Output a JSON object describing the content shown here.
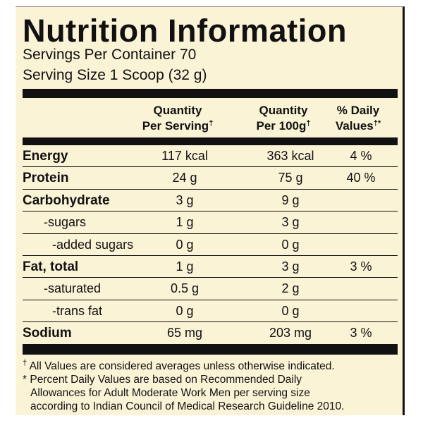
{
  "title": "Nutrition Information",
  "servings_per_container": "Servings Per Container 70",
  "serving_size": "Serving Size 1 Scoop (32 g)",
  "headers": [
    {
      "line1": "Quantity",
      "line2": "Per Serving",
      "mark": "†"
    },
    {
      "line1": "Quantity",
      "line2": "Per 100g",
      "mark": "†"
    },
    {
      "line1": "% Daily",
      "line2": "Values",
      "mark": "†*"
    }
  ],
  "rows": [
    {
      "label": "Energy",
      "per_serving": "117 kcal",
      "per_100g": "363 kcal",
      "daily_value": "4 %"
    },
    {
      "label": "Protein",
      "per_serving": "24 g",
      "per_100g": "75 g",
      "daily_value": "40 %"
    },
    {
      "label": "Carbohydrate",
      "per_serving": "3 g",
      "per_100g": "9 g"
    },
    {
      "label": "-sugars",
      "per_serving": "1 g",
      "per_100g": "3 g"
    },
    {
      "label": "-added sugars",
      "per_serving": "0 g",
      "per_100g": "0 g"
    },
    {
      "label": "Fat, total",
      "per_serving": "1 g",
      "per_100g": "3 g",
      "daily_value": "3 %"
    },
    {
      "label": "-saturated",
      "per_serving": "0.5 g",
      "per_100g": "2 g"
    },
    {
      "label": "-trans fat",
      "per_serving": "0 g",
      "per_100g": "0 g"
    },
    {
      "label": "Sodium",
      "per_serving": "65 mg",
      "per_100g": "203 mg",
      "daily_value": "3 %"
    }
  ],
  "footnotes": [
    {
      "mark": "†",
      "lines": [
        "All Values are considered averages unless otherwise indicated."
      ]
    },
    {
      "mark": "*",
      "lines": [
        "Percent Daily Values are based on Recommended Daily",
        "Allowances for Adult Moderate Work Men per serving size",
        "according to Indian Council of Medical Research Guideline 2010."
      ]
    }
  ]
}
